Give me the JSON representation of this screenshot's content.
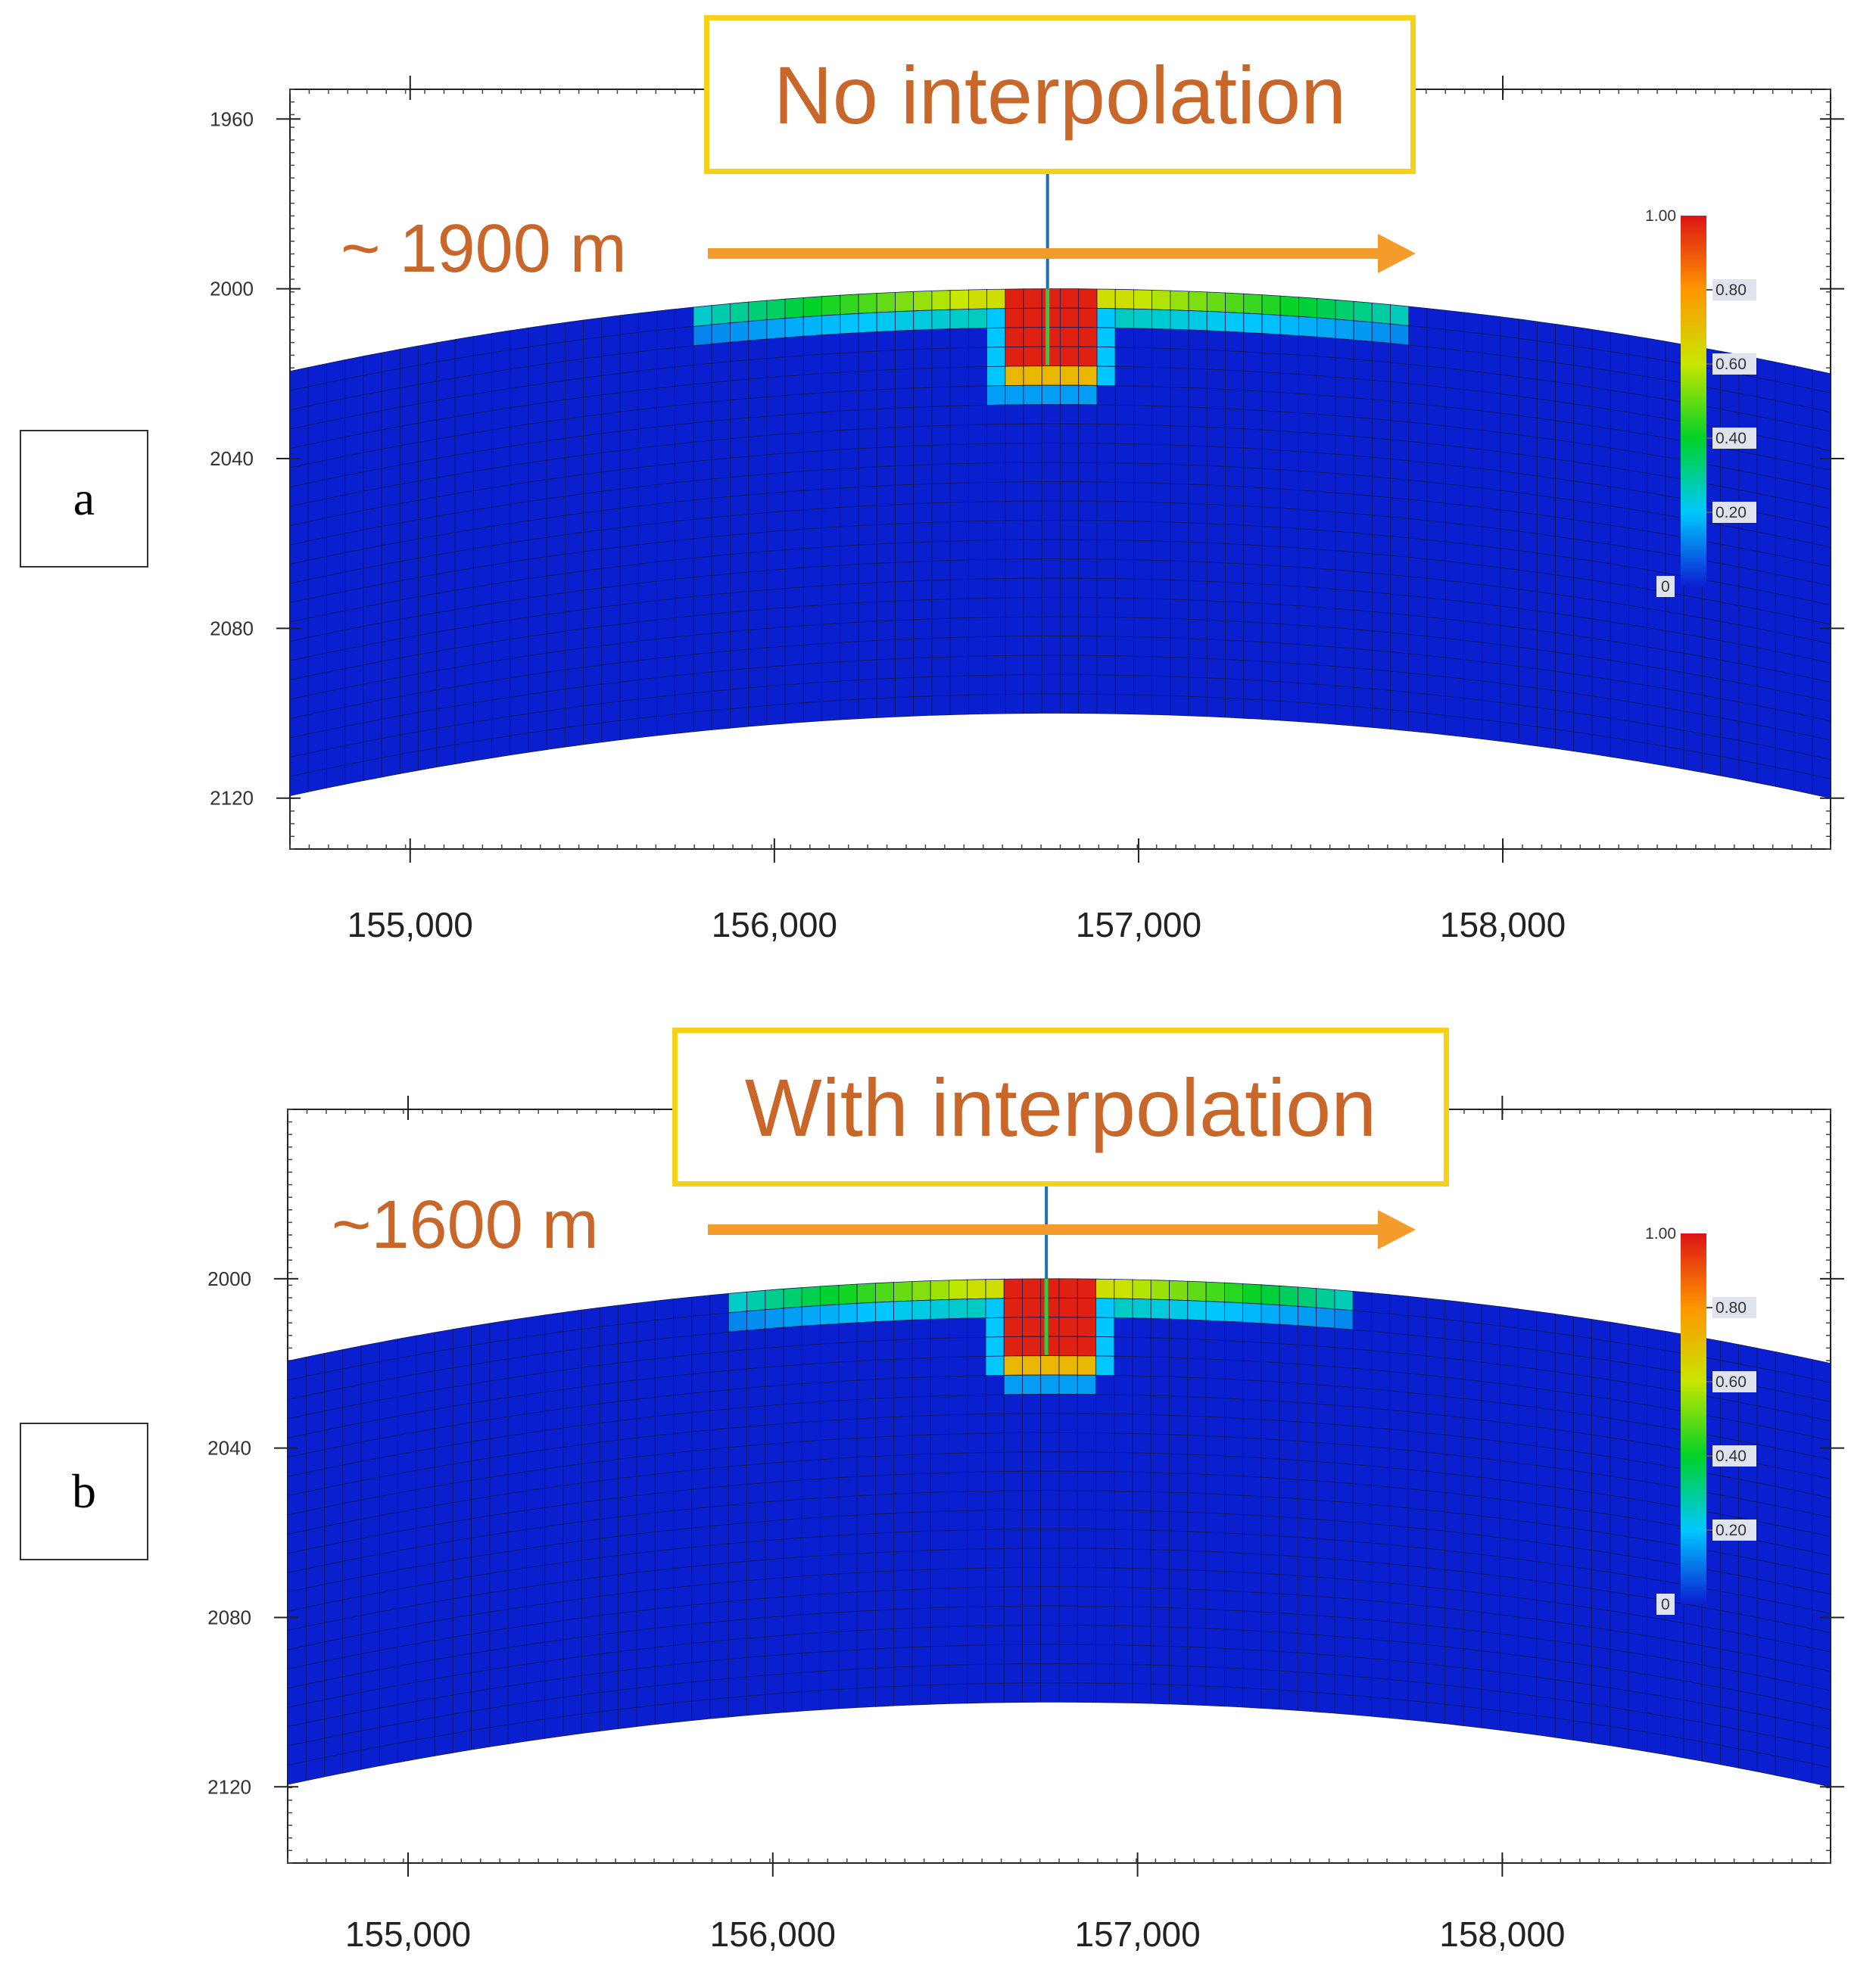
{
  "chart_data": [
    {
      "type": "heatmap",
      "panel_label": "a",
      "title": "No interpolation",
      "annotation": "~ 1900 m",
      "xticks": [
        "155,000",
        "156,000",
        "157,000",
        "158,000"
      ],
      "yticks": [
        "1960",
        "2000",
        "2040",
        "2080",
        "2120"
      ],
      "xlim": [
        154670,
        158900
      ],
      "ylim": [
        1953,
        2132
      ],
      "y_inverted": true,
      "colorbar": {
        "ticks": [
          "1.00",
          "0.80",
          "0.60",
          "0.40",
          "0.20",
          "0"
        ],
        "range": [
          0,
          1
        ],
        "colormap": "rainbow"
      },
      "layer": {
        "crest_x": 156770,
        "top_at_crest": 2000,
        "top_at_edges": 2020,
        "bottom_at_crest": 2100,
        "bottom_at_edges": 2120
      },
      "well_x": 156750,
      "plume": {
        "high_x": [
          156610,
          156900
        ],
        "high_depth": [
          2000,
          2020
        ],
        "front_x": [
          155800,
          157750
        ],
        "front_depth": [
          2000,
          2005
        ]
      },
      "colors": {
        "title_border": "#f5d11a",
        "title_text": "#c9672a",
        "arrow": "#f39c2b",
        "background_cells": "#0a1fcf",
        "well": "#1f6fb4"
      }
    },
    {
      "type": "heatmap",
      "panel_label": "b",
      "title": "With interpolation",
      "annotation": "~1600 m",
      "xticks": [
        "155,000",
        "156,000",
        "157,000",
        "158,000"
      ],
      "yticks": [
        "2000",
        "2040",
        "2080",
        "2120"
      ],
      "xlim": [
        154670,
        158900
      ],
      "ylim": [
        1960,
        2138
      ],
      "y_inverted": true,
      "colorbar": {
        "ticks": [
          "1.00",
          "0.80",
          "0.60",
          "0.40",
          "0.20",
          "0"
        ],
        "range": [
          0,
          1
        ],
        "colormap": "rainbow"
      },
      "layer": {
        "crest_x": 156770,
        "top_at_crest": 2000,
        "top_at_edges": 2020,
        "bottom_at_crest": 2100,
        "bottom_at_edges": 2120
      },
      "well_x": 156750,
      "plume": {
        "high_x": [
          156620,
          156890
        ],
        "high_depth": [
          2000,
          2020
        ],
        "front_x": [
          155900,
          157600
        ],
        "front_depth": [
          2000,
          2005
        ]
      },
      "colors": {
        "title_border": "#f5d11a",
        "title_text": "#c9672a",
        "arrow": "#f39c2b",
        "background_cells": "#0a1fcf",
        "well": "#1f6fb4"
      }
    }
  ]
}
